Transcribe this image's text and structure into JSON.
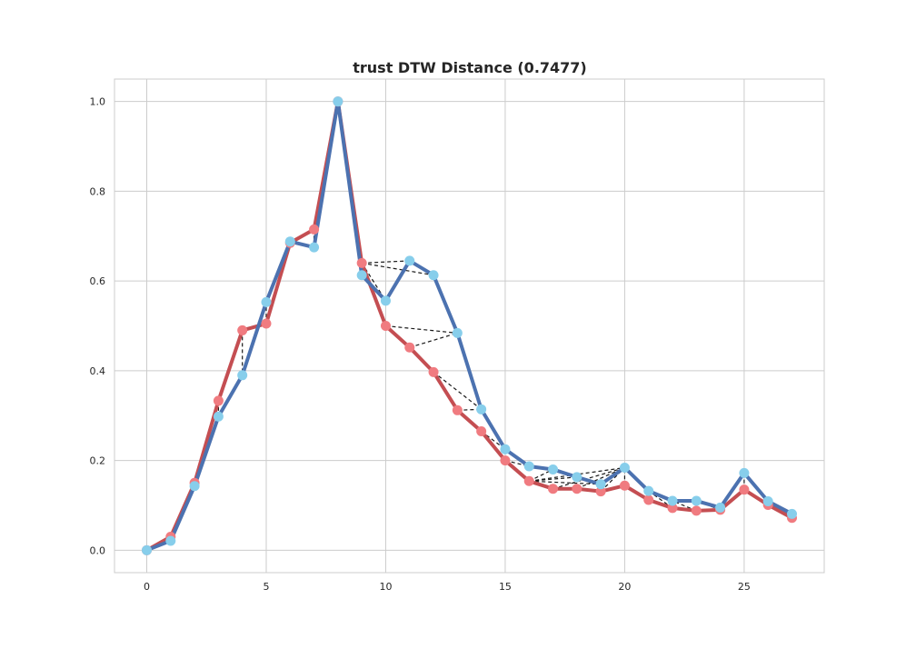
{
  "chart_data": {
    "type": "line",
    "title": "trust DTW Distance (0.7477)",
    "xlabel": "",
    "ylabel": "",
    "xlim": [
      -1.35,
      28.35
    ],
    "ylim": [
      -0.05,
      1.05
    ],
    "grid": true,
    "legend": "none",
    "x_ticks": [
      0,
      5,
      10,
      15,
      20,
      25
    ],
    "y_ticks": [
      0.0,
      0.2,
      0.4,
      0.6,
      0.8,
      1.0
    ],
    "x_tick_labels": [
      "0",
      "5",
      "10",
      "15",
      "20",
      "25"
    ],
    "y_tick_labels": [
      "0.0",
      "0.2",
      "0.4",
      "0.6",
      "0.8",
      "1.0"
    ],
    "series": [
      {
        "color": "#c44e52",
        "marker_color": "#f07b80",
        "x": [
          0,
          1,
          2,
          3,
          4,
          5,
          6,
          7,
          8,
          9,
          10,
          11,
          12,
          13,
          14,
          15,
          16,
          17,
          18,
          19,
          20,
          21,
          22,
          23,
          24,
          25,
          26,
          27
        ],
        "values": [
          0.0,
          0.03,
          0.15,
          0.333,
          0.49,
          0.505,
          0.685,
          0.715,
          1.0,
          0.64,
          0.5,
          0.452,
          0.397,
          0.312,
          0.265,
          0.2,
          0.154,
          0.137,
          0.137,
          0.131,
          0.144,
          0.112,
          0.094,
          0.088,
          0.09,
          0.135,
          0.101,
          0.072
        ]
      },
      {
        "color": "#4c72b0",
        "marker_color": "#87ceeb",
        "x": [
          0,
          1,
          2,
          3,
          4,
          5,
          6,
          7,
          8,
          9,
          10,
          11,
          12,
          13,
          14,
          15,
          16,
          17,
          18,
          19,
          20,
          21,
          22,
          23,
          24,
          25,
          26,
          27
        ],
        "values": [
          0.0,
          0.021,
          0.143,
          0.298,
          0.39,
          0.553,
          0.688,
          0.675,
          1.0,
          0.613,
          0.556,
          0.645,
          0.613,
          0.484,
          0.314,
          0.225,
          0.187,
          0.18,
          0.163,
          0.147,
          0.184,
          0.132,
          0.11,
          0.11,
          0.095,
          0.172,
          0.109,
          0.081
        ]
      }
    ],
    "alignment_color": "#1a1a1a",
    "alignment": [
      [
        0,
        0
      ],
      [
        1,
        1
      ],
      [
        2,
        2
      ],
      [
        3,
        3
      ],
      [
        4,
        4
      ],
      [
        5,
        5
      ],
      [
        6,
        6
      ],
      [
        7,
        7
      ],
      [
        8,
        8
      ],
      [
        9,
        9
      ],
      [
        9,
        10
      ],
      [
        9,
        11
      ],
      [
        9,
        12
      ],
      [
        10,
        13
      ],
      [
        11,
        13
      ],
      [
        12,
        14
      ],
      [
        13,
        14
      ],
      [
        14,
        15
      ],
      [
        15,
        15
      ],
      [
        15,
        16
      ],
      [
        16,
        17
      ],
      [
        16,
        18
      ],
      [
        16,
        19
      ],
      [
        16,
        20
      ],
      [
        17,
        20
      ],
      [
        18,
        20
      ],
      [
        19,
        20
      ],
      [
        20,
        20
      ],
      [
        21,
        21
      ],
      [
        22,
        21
      ],
      [
        23,
        22
      ],
      [
        24,
        23
      ],
      [
        24,
        24
      ],
      [
        25,
        25
      ],
      [
        26,
        26
      ],
      [
        27,
        27
      ]
    ]
  }
}
